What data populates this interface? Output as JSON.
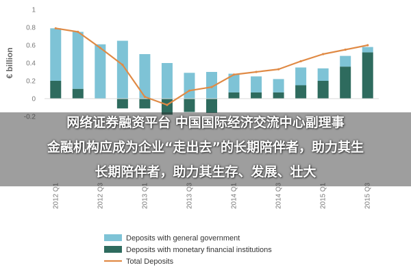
{
  "chart_data": {
    "type": "bar",
    "ylabel": "€ billion",
    "ylim": [
      -0.2,
      1.0
    ],
    "yticks": [
      "-0.2",
      "0",
      "0.2",
      "0.4",
      "0.6",
      "0.8",
      "1"
    ],
    "categories": [
      "2012 Q1",
      "",
      "2012 Q3",
      "",
      "2013 Q1",
      "",
      "2013 Q3",
      "",
      "2014 Q1",
      "",
      "2014 Q3",
      "",
      "2015 Q1",
      "",
      "2015 Q3"
    ],
    "series": [
      {
        "name": "Deposits with general government",
        "kind": "bar",
        "color": "#7ec3d6",
        "values": [
          0.59,
          0.64,
          0.61,
          0.65,
          0.5,
          0.4,
          0.29,
          0.3,
          0.21,
          0.18,
          0.15,
          0.2,
          0.14,
          0.12,
          0.06
        ]
      },
      {
        "name": "Deposits with monetary financial institutions",
        "kind": "bar",
        "color": "#2e6b5e",
        "values": [
          0.2,
          0.11,
          0.0,
          -0.11,
          -0.11,
          -0.18,
          -0.15,
          -0.16,
          0.07,
          0.07,
          0.07,
          0.15,
          0.2,
          0.36,
          0.52
        ]
      },
      {
        "name": "Total Deposits",
        "kind": "line",
        "color": "#e08a45",
        "values": [
          0.79,
          0.75,
          0.57,
          0.38,
          0.02,
          -0.07,
          0.09,
          0.13,
          0.27,
          0.3,
          0.33,
          0.42,
          0.5,
          0.55,
          0.6
        ]
      }
    ],
    "legend_position": "bottom",
    "grid": false
  },
  "overlay": {
    "line1": "网络证券融资平台 中国国际经济交流中心副理事",
    "line2": "金融机构应成为企业“走出去”的长期陪伴者，助力其生",
    "line3": "长期陪伴者，助力其生存、发展、壮大"
  }
}
